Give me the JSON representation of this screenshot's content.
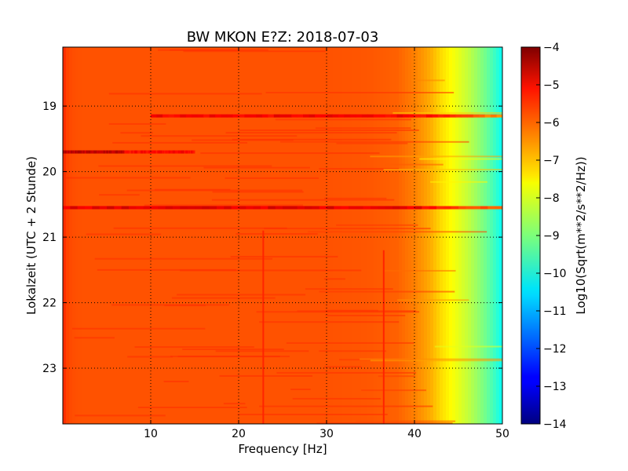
{
  "chart_data": {
    "type": "heatmap",
    "title": "BW MKON E?Z: 2018-07-03",
    "xlabel": "Frequency [Hz]",
    "ylabel": "Lokalzeit (UTC + 2 Stunde)",
    "xlim": [
      0,
      50
    ],
    "ylim": [
      23.85,
      18.1
    ],
    "x_ticks": [
      10,
      20,
      30,
      40,
      50
    ],
    "x_tick_labels": [
      "10",
      "20",
      "30",
      "40",
      "50"
    ],
    "y_ticks": [
      19,
      20,
      21,
      22,
      23
    ],
    "y_tick_labels": [
      "19",
      "20",
      "21",
      "22",
      "23"
    ],
    "grid": true,
    "colormap": "jet",
    "colorbar": {
      "label": "Log10(Sqrt(m**2/s**2/Hz))",
      "range": [
        -14,
        -4
      ],
      "ticks": [
        -4,
        -5,
        -6,
        -7,
        -8,
        -9,
        -10,
        -11,
        -12,
        -13,
        -14
      ],
      "tick_labels": [
        "−4",
        "−5",
        "−6",
        "−7",
        "−8",
        "−9",
        "−10",
        "−11",
        "−12",
        "−13",
        "−14"
      ]
    },
    "baseline_profile": {
      "frequency_hz": [
        0,
        0.5,
        1,
        2,
        5,
        10,
        20,
        30,
        35,
        38,
        40,
        42,
        43,
        44,
        45,
        46,
        47,
        48,
        49,
        50
      ],
      "log10_amplitude": [
        -5.6,
        -5.9,
        -6.0,
        -6.05,
        -6.05,
        -6.05,
        -6.05,
        -6.05,
        -6.1,
        -6.2,
        -6.5,
        -7.0,
        -7.4,
        -7.7,
        -8.0,
        -8.3,
        -8.7,
        -9.1,
        -9.6,
        -10.2
      ]
    },
    "horizontal_bands": [
      {
        "time_h": 19.15,
        "f_min_hz": 10,
        "f_max_hz": 50,
        "log10_amplitude": -5.2
      },
      {
        "time_h": 19.7,
        "f_min_hz": 0,
        "f_max_hz": 7,
        "log10_amplitude": -4.6
      },
      {
        "time_h": 19.7,
        "f_min_hz": 7,
        "f_max_hz": 15,
        "log10_amplitude": -5.3
      },
      {
        "time_h": 20.55,
        "f_min_hz": 0,
        "f_max_hz": 50,
        "log10_amplitude": -5.0
      }
    ],
    "vertical_lines": [
      {
        "frequency_hz": 22.8,
        "t_min_h": 20.9,
        "t_max_h": 23.85,
        "log10_amplitude": -5.6
      },
      {
        "frequency_hz": 36.5,
        "t_min_h": 21.2,
        "t_max_h": 23.85,
        "log10_amplitude": -5.6
      }
    ]
  }
}
